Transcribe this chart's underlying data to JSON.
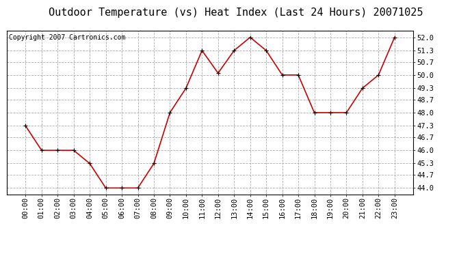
{
  "title": "Outdoor Temperature (vs) Heat Index (Last 24 Hours) 20071025",
  "copyright_text": "Copyright 2007 Cartronics.com",
  "line_color": "#cc0000",
  "marker": "+",
  "marker_color": "#000000",
  "background_color": "#ffffff",
  "plot_bg_color": "#ffffff",
  "grid_color": "#aaaaaa",
  "hours": [
    "00:00",
    "01:00",
    "02:00",
    "03:00",
    "04:00",
    "05:00",
    "06:00",
    "07:00",
    "08:00",
    "09:00",
    "10:00",
    "11:00",
    "12:00",
    "13:00",
    "14:00",
    "15:00",
    "16:00",
    "17:00",
    "18:00",
    "19:00",
    "20:00",
    "21:00",
    "22:00",
    "23:00"
  ],
  "values": [
    47.3,
    46.0,
    46.0,
    46.0,
    45.3,
    44.0,
    44.0,
    44.0,
    45.3,
    48.0,
    49.3,
    51.3,
    50.1,
    51.3,
    52.0,
    51.3,
    50.0,
    50.0,
    48.0,
    48.0,
    48.0,
    49.3,
    50.0,
    52.0
  ],
  "yticks": [
    44.0,
    44.7,
    45.3,
    46.0,
    46.7,
    47.3,
    48.0,
    48.7,
    49.3,
    50.0,
    50.7,
    51.3,
    52.0
  ],
  "ylim": [
    43.65,
    52.35
  ],
  "title_fontsize": 11,
  "copyright_fontsize": 7,
  "tick_fontsize": 7.5
}
